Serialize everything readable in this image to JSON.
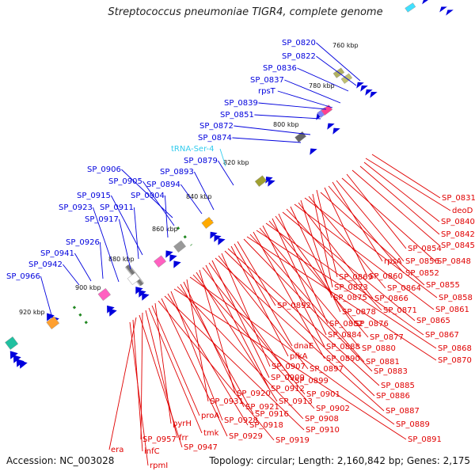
{
  "title": "Streptococcus pneumoniae TIGR4, complete genome",
  "footer": {
    "accession": "Accession: NC_003028",
    "topology": "Topology: circular; Length: 2,160,842 bp; Genes: 2,175"
  },
  "colors": {
    "cds_forward": "#e00000",
    "cds_reverse": "#0000dd",
    "trna": "#33ccee",
    "tick_dots": "#228822",
    "backbone": "#888888"
  },
  "scale_ticks": [
    "760 kbp",
    "780 kbp",
    "800 kbp",
    "820 kbp",
    "840 kbp",
    "860 kbp",
    "880 kbp",
    "900 kbp",
    "920 kbp"
  ],
  "blue_labels": [
    "SP_0820",
    "SP_0822",
    "SP_0836",
    "SP_0837",
    "rpsT",
    "SP_0839",
    "SP_0851",
    "SP_0872",
    "SP_0874",
    "tRNA-Ser-4",
    "SP_0879",
    "SP_0893",
    "SP_0894",
    "SP_0906",
    "SP_0905",
    "SP_0904",
    "SP_0915",
    "SP_0911",
    "SP_0923",
    "SP_0917",
    "SP_0926",
    "SP_0941",
    "SP_0942",
    "SP_0966"
  ],
  "red_labels": [
    "SP_0831",
    "deoD",
    "SP_0840",
    "SP_0842",
    "SP_0845",
    "SP_0854",
    "SP_0848",
    "rpsA",
    "SP_0856",
    "SP_0852",
    "SP_0869",
    "SP_0860",
    "SP_0855",
    "SP_0873",
    "SP_0864",
    "SP_0858",
    "SP_0875",
    "SP_0866",
    "SP_0861",
    "SP_0878",
    "SP_0871",
    "SP_0865",
    "SP_0882",
    "SP_0876",
    "SP_0884",
    "SP_0877",
    "SP_0867",
    "SP_0888",
    "SP_0880",
    "SP_0868",
    "SP_0890",
    "SP_0881",
    "SP_0870",
    "SP_0883",
    "SP_0892",
    "dnaE",
    "pfkA",
    "SP_0885",
    "SP_0886",
    "SP_0907",
    "SP_0897",
    "SP_0887",
    "SP_0909",
    "SP_0899",
    "SP_0912",
    "SP_0901",
    "SP_0920",
    "SP_0913",
    "SP_0902",
    "SP_0889",
    "SP_0931",
    "SP_0921",
    "SP_0916",
    "SP_0908",
    "SP_0891",
    "SP_0928",
    "SP_0918",
    "SP_0910",
    "SP_0929",
    "SP_0919",
    "pyrH",
    "proA",
    "tmk",
    "frr",
    "SP_0957",
    "SP_0947",
    "era",
    "infC",
    "rpmI"
  ]
}
